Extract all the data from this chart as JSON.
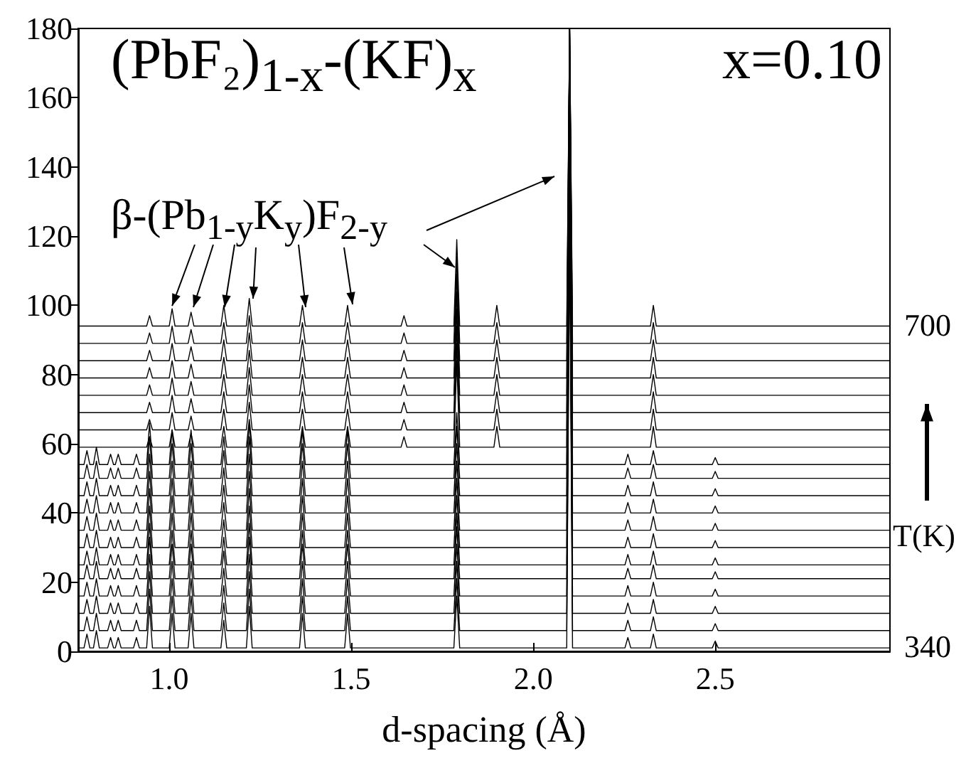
{
  "chart_data": {
    "type": "line",
    "title": "(PbF₂)$_{1-x}$-(KF)$_{x}$",
    "xlabel": "d-spacing (Å)",
    "annotations": [
      "x=0.10",
      {
        "text": "β-(Pb$_{1-y}$K$_{y}$)F$_{2-y}$",
        "x": 1.008,
        "y": 99
      },
      "700",
      "T(K)",
      "340"
    ],
    "xlim": [
      0.75,
      2.98
    ],
    "xticks": [
      {
        "value": 1,
        "label": "1.0"
      },
      {
        "value": 1.5,
        "label": "1.5"
      },
      {
        "value": 2,
        "label": "2.0"
      },
      {
        "value": 2.5,
        "label": "2.5"
      }
    ],
    "ylim": [
      0,
      180
    ],
    "yticks": [
      0,
      20,
      40,
      60,
      80,
      100,
      120,
      140,
      160,
      180
    ],
    "line_style": "solid",
    "x": [
      0.75,
      0.766,
      0.774,
      0.782,
      0.792,
      0.8,
      0.808,
      0.831,
      0.839,
      0.847,
      0.852,
      0.86,
      0.868,
      0.902,
      0.91,
      0.918,
      0.938,
      0.946,
      0.954,
      1,
      1.008,
      1.016,
      1.052,
      1.06,
      1.068,
      1.142,
      1.15,
      1.158,
      1.212,
      1.22,
      1.228,
      1.358,
      1.366,
      1.374,
      1.482,
      1.49,
      1.498,
      1.637,
      1.645,
      1.653,
      1.782,
      1.79,
      1.798,
      1.892,
      1.9,
      1.908,
      2.092,
      2.1,
      2.108,
      2.252,
      2.26,
      2.268,
      2.322,
      2.33,
      2.338,
      2.492,
      2.5,
      2.508,
      2.98
    ],
    "series": [
      {
        "color": "#000000",
        "values": [
          1,
          1,
          5,
          1,
          1,
          6,
          1,
          1,
          4,
          1,
          1,
          4,
          1,
          1,
          4,
          1,
          1,
          13,
          1,
          1,
          11,
          1,
          1,
          11,
          1,
          1,
          9,
          1,
          1,
          13,
          1,
          1,
          11,
          1,
          1,
          11,
          1,
          1,
          1,
          1,
          1,
          16,
          1,
          1,
          1,
          1,
          1,
          121,
          1,
          1,
          4,
          1,
          1,
          5,
          1,
          1,
          3,
          1,
          1
        ]
      },
      {
        "color": "#000000",
        "values": [
          6,
          6,
          10,
          6,
          6,
          11,
          6,
          6,
          9,
          6,
          6,
          9,
          6,
          6,
          9,
          6,
          6,
          18,
          6,
          6,
          16,
          6,
          6,
          16,
          6,
          6,
          14,
          6,
          6,
          18,
          6,
          6,
          16,
          6,
          6,
          16,
          6,
          6,
          6,
          6,
          6,
          21,
          6,
          6,
          6,
          6,
          6,
          126,
          6,
          6,
          9,
          6,
          6,
          10,
          6,
          6,
          8,
          6,
          6
        ]
      },
      {
        "color": "#000000",
        "values": [
          11,
          11,
          15,
          11,
          11,
          16,
          11,
          11,
          14,
          11,
          11,
          14,
          11,
          11,
          14,
          11,
          11,
          23,
          11,
          11,
          21,
          11,
          11,
          21,
          11,
          11,
          19,
          11,
          11,
          23,
          11,
          11,
          21,
          11,
          11,
          21,
          11,
          11,
          11,
          11,
          11,
          26,
          11,
          11,
          11,
          11,
          11,
          131,
          11,
          11,
          14,
          11,
          11,
          15,
          11,
          11,
          13,
          11,
          11
        ]
      },
      {
        "color": "#000000",
        "values": [
          16,
          16,
          20,
          16,
          16,
          21,
          16,
          16,
          19,
          16,
          16,
          19,
          16,
          16,
          19,
          16,
          16,
          28,
          16,
          16,
          26,
          16,
          16,
          26,
          16,
          16,
          24,
          16,
          16,
          28,
          16,
          16,
          26,
          16,
          16,
          26,
          16,
          16,
          16,
          16,
          16,
          31,
          16,
          16,
          16,
          16,
          16,
          136,
          16,
          16,
          19,
          16,
          16,
          20,
          16,
          16,
          18,
          16,
          16
        ]
      },
      {
        "color": "#000000",
        "values": [
          21,
          21,
          25,
          21,
          21,
          26,
          21,
          21,
          24,
          21,
          21,
          24,
          21,
          21,
          24,
          21,
          21,
          33,
          21,
          21,
          31,
          21,
          21,
          31,
          21,
          21,
          29,
          21,
          21,
          33,
          21,
          21,
          31,
          21,
          21,
          31,
          21,
          21,
          21,
          21,
          21,
          36,
          21,
          21,
          21,
          21,
          21,
          141,
          21,
          21,
          24,
          21,
          21,
          25,
          21,
          21,
          23,
          21,
          21
        ]
      },
      {
        "color": "#000000",
        "values": [
          25,
          25,
          29,
          25,
          25,
          30,
          25,
          25,
          28,
          25,
          25,
          28,
          25,
          25,
          28,
          25,
          25,
          37,
          25,
          25,
          35,
          25,
          25,
          35,
          25,
          25,
          33,
          25,
          25,
          37,
          25,
          25,
          35,
          25,
          25,
          35,
          25,
          25,
          25,
          25,
          25,
          40,
          25,
          25,
          25,
          25,
          25,
          145,
          25,
          25,
          28,
          25,
          25,
          29,
          25,
          25,
          27,
          25,
          25
        ]
      },
      {
        "color": "#000000",
        "values": [
          30,
          30,
          34,
          30,
          30,
          35,
          30,
          30,
          33,
          30,
          30,
          33,
          30,
          30,
          33,
          30,
          30,
          42,
          30,
          30,
          40,
          30,
          30,
          40,
          30,
          30,
          38,
          30,
          30,
          42,
          30,
          30,
          40,
          30,
          30,
          40,
          30,
          30,
          30,
          30,
          30,
          45,
          30,
          30,
          30,
          30,
          30,
          150,
          30,
          30,
          33,
          30,
          30,
          34,
          30,
          30,
          32,
          30,
          30
        ]
      },
      {
        "color": "#000000",
        "values": [
          35,
          35,
          39,
          35,
          35,
          40,
          35,
          35,
          38,
          35,
          35,
          38,
          35,
          35,
          38,
          35,
          35,
          47,
          35,
          35,
          45,
          35,
          35,
          45,
          35,
          35,
          43,
          35,
          35,
          47,
          35,
          35,
          45,
          35,
          35,
          45,
          35,
          35,
          35,
          35,
          35,
          50,
          35,
          35,
          35,
          35,
          35,
          155,
          35,
          35,
          38,
          35,
          35,
          39,
          35,
          35,
          37,
          35,
          35
        ]
      },
      {
        "color": "#000000",
        "values": [
          40,
          40,
          44,
          40,
          40,
          45,
          40,
          40,
          43,
          40,
          40,
          43,
          40,
          40,
          43,
          40,
          40,
          52,
          40,
          40,
          50,
          40,
          40,
          50,
          40,
          40,
          48,
          40,
          40,
          52,
          40,
          40,
          50,
          40,
          40,
          50,
          40,
          40,
          40,
          40,
          40,
          55,
          40,
          40,
          40,
          40,
          40,
          160,
          40,
          40,
          43,
          40,
          40,
          44,
          40,
          40,
          42,
          40,
          40
        ]
      },
      {
        "color": "#000000",
        "values": [
          45,
          45,
          49,
          45,
          45,
          50,
          45,
          45,
          48,
          45,
          45,
          48,
          45,
          45,
          48,
          45,
          45,
          57,
          45,
          45,
          55,
          45,
          45,
          55,
          45,
          45,
          53,
          45,
          45,
          57,
          45,
          45,
          55,
          45,
          45,
          55,
          45,
          45,
          45,
          45,
          45,
          60,
          45,
          45,
          45,
          45,
          45,
          165,
          45,
          45,
          48,
          45,
          45,
          49,
          45,
          45,
          47,
          45,
          45
        ]
      },
      {
        "color": "#000000",
        "values": [
          50,
          50,
          54,
          50,
          50,
          55,
          50,
          50,
          53,
          50,
          50,
          53,
          50,
          50,
          53,
          50,
          50,
          62,
          50,
          50,
          60,
          50,
          50,
          60,
          50,
          50,
          58,
          50,
          50,
          62,
          50,
          50,
          60,
          50,
          50,
          60,
          50,
          50,
          50,
          50,
          50,
          65,
          50,
          50,
          50,
          50,
          50,
          170,
          50,
          50,
          53,
          50,
          50,
          54,
          50,
          50,
          52,
          50,
          50
        ]
      },
      {
        "color": "#000000",
        "values": [
          54,
          54,
          58,
          54,
          54,
          59,
          54,
          54,
          57,
          54,
          54,
          57,
          54,
          54,
          57,
          54,
          54,
          66,
          54,
          54,
          64,
          54,
          54,
          64,
          54,
          54,
          62,
          54,
          54,
          66,
          54,
          54,
          64,
          54,
          54,
          64,
          54,
          54,
          54,
          54,
          54,
          69,
          54,
          54,
          54,
          54,
          54,
          174,
          54,
          54,
          57,
          54,
          54,
          58,
          54,
          54,
          56,
          54,
          54
        ]
      },
      {
        "color": "#000000",
        "values": [
          59,
          59,
          59,
          59,
          59,
          59,
          59,
          59,
          59,
          59,
          59,
          59,
          59,
          59,
          59,
          59,
          59,
          62,
          59,
          59,
          64,
          59,
          59,
          63,
          59,
          59,
          65,
          59,
          59,
          67,
          59,
          59,
          65,
          59,
          59,
          65,
          59,
          59,
          62,
          59,
          59,
          84,
          59,
          59,
          65,
          59,
          59,
          180,
          59,
          59,
          59,
          59,
          59,
          65,
          59,
          59,
          59,
          59,
          59
        ]
      },
      {
        "color": "#000000",
        "values": [
          64,
          64,
          64,
          64,
          64,
          64,
          64,
          64,
          64,
          64,
          64,
          64,
          64,
          64,
          64,
          64,
          64,
          67,
          64,
          64,
          69,
          64,
          64,
          68,
          64,
          64,
          70,
          64,
          64,
          72,
          64,
          64,
          70,
          64,
          64,
          70,
          64,
          64,
          67,
          64,
          64,
          89,
          64,
          64,
          70,
          64,
          64,
          180,
          64,
          64,
          64,
          64,
          64,
          70,
          64,
          64,
          64,
          64,
          64
        ]
      },
      {
        "color": "#000000",
        "values": [
          69,
          69,
          69,
          69,
          69,
          69,
          69,
          69,
          69,
          69,
          69,
          69,
          69,
          69,
          69,
          69,
          69,
          72,
          69,
          69,
          74,
          69,
          69,
          73,
          69,
          69,
          75,
          69,
          69,
          77,
          69,
          69,
          75,
          69,
          69,
          75,
          69,
          69,
          72,
          69,
          69,
          94,
          69,
          69,
          75,
          69,
          69,
          180,
          69,
          69,
          69,
          69,
          69,
          75,
          69,
          69,
          69,
          69,
          69
        ]
      },
      {
        "color": "#000000",
        "values": [
          74,
          74,
          74,
          74,
          74,
          74,
          74,
          74,
          74,
          74,
          74,
          74,
          74,
          74,
          74,
          74,
          74,
          77,
          74,
          74,
          79,
          74,
          74,
          78,
          74,
          74,
          80,
          74,
          74,
          82,
          74,
          74,
          80,
          74,
          74,
          80,
          74,
          74,
          77,
          74,
          74,
          99,
          74,
          74,
          80,
          74,
          74,
          180,
          74,
          74,
          74,
          74,
          74,
          80,
          74,
          74,
          74,
          74,
          74
        ]
      },
      {
        "color": "#000000",
        "values": [
          79,
          79,
          79,
          79,
          79,
          79,
          79,
          79,
          79,
          79,
          79,
          79,
          79,
          79,
          79,
          79,
          79,
          82,
          79,
          79,
          84,
          79,
          79,
          83,
          79,
          79,
          85,
          79,
          79,
          87,
          79,
          79,
          85,
          79,
          79,
          85,
          79,
          79,
          82,
          79,
          79,
          104,
          79,
          79,
          85,
          79,
          79,
          180,
          79,
          79,
          79,
          79,
          79,
          85,
          79,
          79,
          79,
          79,
          79
        ]
      },
      {
        "color": "#000000",
        "values": [
          84,
          84,
          84,
          84,
          84,
          84,
          84,
          84,
          84,
          84,
          84,
          84,
          84,
          84,
          84,
          84,
          84,
          87,
          84,
          84,
          89,
          84,
          84,
          88,
          84,
          84,
          90,
          84,
          84,
          92,
          84,
          84,
          90,
          84,
          84,
          90,
          84,
          84,
          87,
          84,
          84,
          109,
          84,
          84,
          90,
          84,
          84,
          180,
          84,
          84,
          84,
          84,
          84,
          90,
          84,
          84,
          84,
          84,
          84
        ]
      },
      {
        "color": "#000000",
        "values": [
          89,
          89,
          89,
          89,
          89,
          89,
          89,
          89,
          89,
          89,
          89,
          89,
          89,
          89,
          89,
          89,
          89,
          92,
          89,
          89,
          94,
          89,
          89,
          93,
          89,
          89,
          95,
          89,
          89,
          97,
          89,
          89,
          95,
          89,
          89,
          95,
          89,
          89,
          92,
          89,
          89,
          114,
          89,
          89,
          95,
          89,
          89,
          180,
          89,
          89,
          89,
          89,
          89,
          95,
          89,
          89,
          89,
          89,
          89
        ]
      },
      {
        "color": "#000000",
        "values": [
          94,
          94,
          94,
          94,
          94,
          94,
          94,
          94,
          94,
          94,
          94,
          94,
          94,
          94,
          94,
          94,
          94,
          97,
          94,
          94,
          99,
          94,
          94,
          98,
          94,
          94,
          100,
          94,
          94,
          102,
          94,
          94,
          100,
          94,
          94,
          100,
          94,
          94,
          97,
          94,
          94,
          119,
          94,
          94,
          100,
          94,
          94,
          180,
          94,
          94,
          94,
          94,
          94,
          100,
          94,
          94,
          94,
          94,
          94
        ]
      }
    ]
  }
}
